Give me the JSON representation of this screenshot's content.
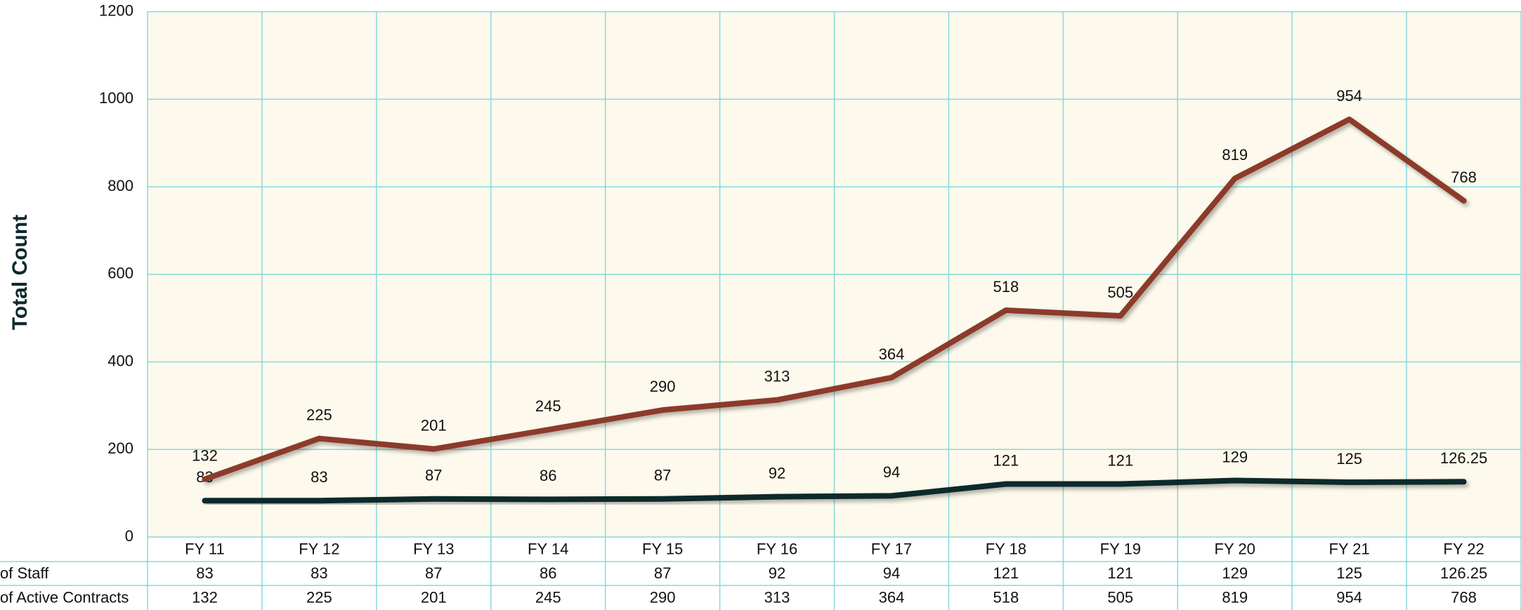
{
  "chart_data": {
    "type": "line",
    "y_label": "Total Count",
    "categories": [
      "FY 11",
      "FY 12",
      "FY 13",
      "FY 14",
      "FY 15",
      "FY 16",
      "FY 17",
      "FY 18",
      "FY 19",
      "FY 20",
      "FY 21",
      "FY 22"
    ],
    "series": [
      {
        "name": "of Staff",
        "color": "#0f2b2b",
        "values": [
          83,
          83,
          87,
          86,
          87,
          92,
          94,
          121,
          121,
          129,
          125,
          126.25
        ]
      },
      {
        "name": "of Active Contracts",
        "color": "#8c3b2b",
        "values": [
          132,
          225,
          201,
          245,
          290,
          313,
          364,
          518,
          505,
          819,
          954,
          768
        ]
      }
    ],
    "ylim": [
      0,
      1200
    ],
    "yticks": [
      0,
      200,
      400,
      600,
      800,
      1000,
      1200
    ],
    "grid": true
  }
}
